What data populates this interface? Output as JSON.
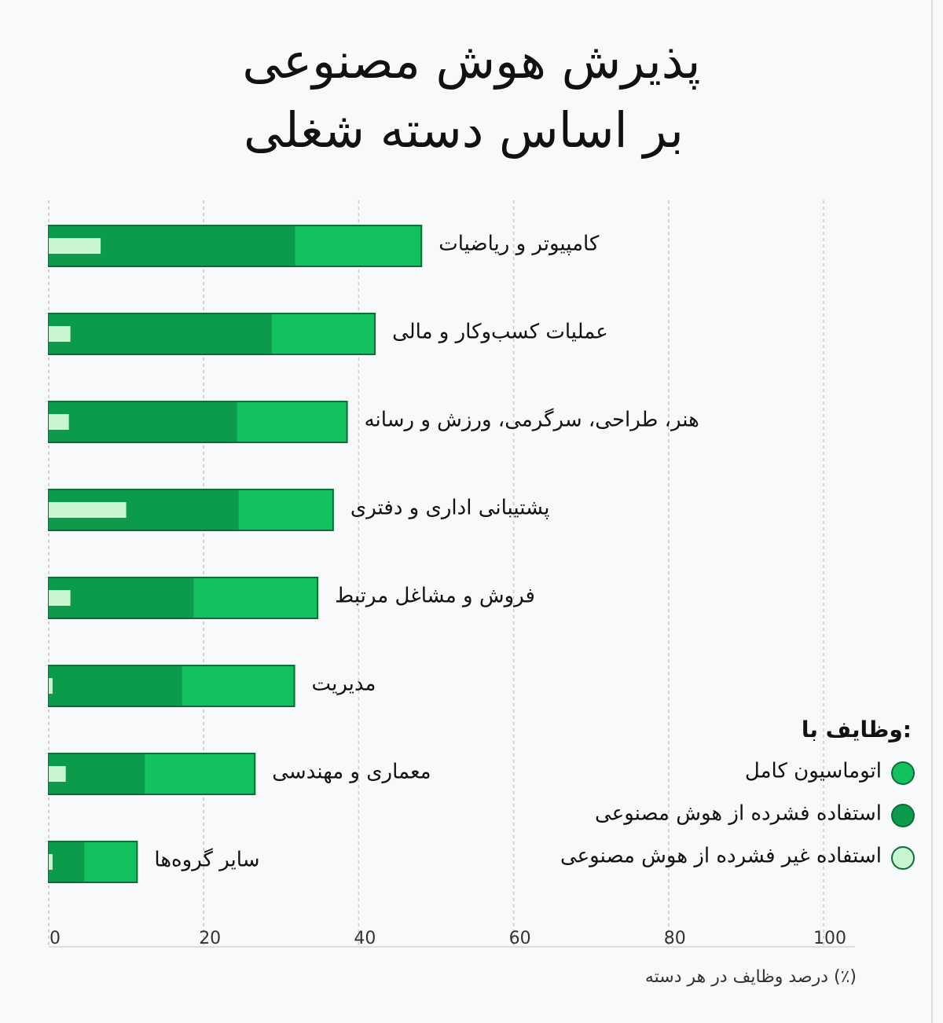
{
  "chart_data": {
    "type": "bar",
    "orientation": "horizontal",
    "title": [
      "پذیرش هوش مصنوعی",
      "بر اساس دسته شغلی"
    ],
    "categories": [
      "کامپیوتر و ریاضیات",
      "عملیات کسب‌وکار و مالی",
      "هنر، طراحی، سرگرمی، ورزش و رسانه",
      "پشتیبانی اداری و دفتری",
      "فروش و مشاغل مرتبط",
      "مدیریت",
      "معماری و مهندسی",
      "سایر گروه‌ها"
    ],
    "series": [
      {
        "name": "اتوماسیون کامل",
        "color": "#14c15f",
        "values": [
          48.1,
          42.1,
          38.5,
          36.7,
          34.7,
          31.7,
          26.6,
          11.4
        ]
      },
      {
        "name": "استفاده فشرده از هوش مصنوعی",
        "color": "#0c9a4c",
        "values": [
          31.8,
          28.8,
          24.3,
          24.5,
          18.7,
          17.2,
          12.4,
          4.6
        ]
      },
      {
        "name": "استفاده غیر فشرده از هوش مصنوعی",
        "color": "#c6f5cf",
        "values": [
          6.7,
          2.8,
          2.6,
          10.0,
          2.8,
          0.5,
          2.2,
          0.5
        ]
      }
    ],
    "legend_title": "وظایف با:",
    "legend_position": "right",
    "xlabel": "درصد وظایف در هر دسته (٪)",
    "xlim": [
      0,
      100
    ],
    "xticks": [
      0,
      20,
      40,
      60,
      80,
      100
    ],
    "grid": true
  }
}
